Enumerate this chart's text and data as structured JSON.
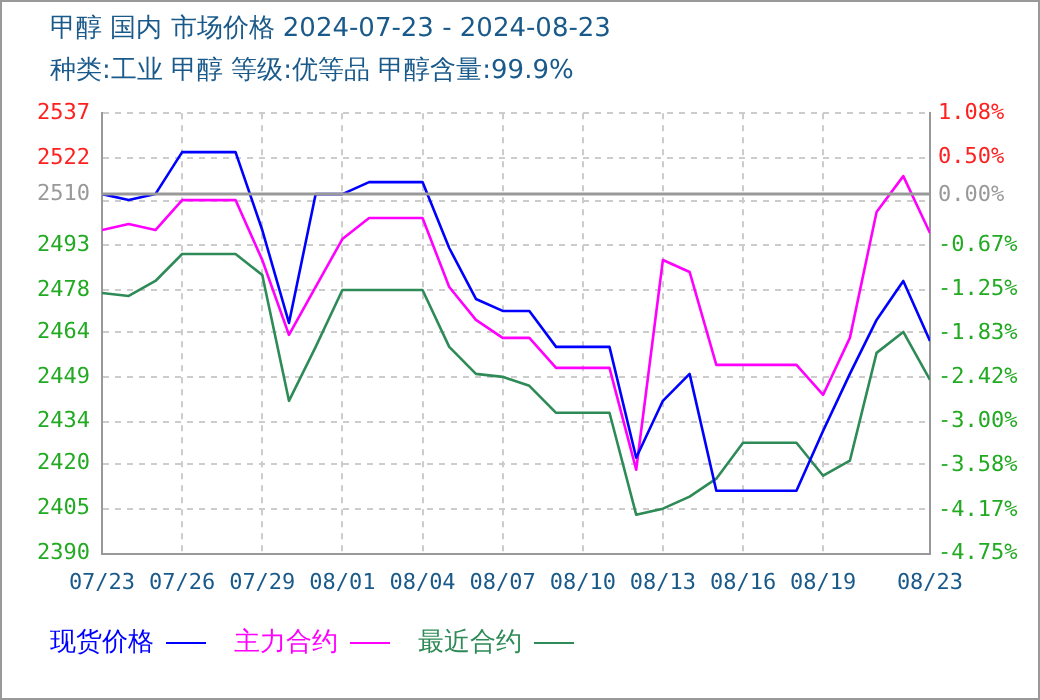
{
  "chart_data": {
    "type": "line",
    "title": "甲醇 国内 市场价格 2024-07-23 - 2024-08-23",
    "subtitle": "种类:工业 甲醇 等级:优等品 甲醇含量:99.9%",
    "x": [
      "2024-07-23",
      "2024-07-24",
      "2024-07-25",
      "2024-07-26",
      "2024-07-27",
      "2024-07-28",
      "2024-07-29",
      "2024-07-30",
      "2024-07-31",
      "2024-08-01",
      "2024-08-02",
      "2024-08-03",
      "2024-08-04",
      "2024-08-05",
      "2024-08-06",
      "2024-08-07",
      "2024-08-08",
      "2024-08-09",
      "2024-08-10",
      "2024-08-11",
      "2024-08-12",
      "2024-08-13",
      "2024-08-14",
      "2024-08-15",
      "2024-08-16",
      "2024-08-17",
      "2024-08-18",
      "2024-08-19",
      "2024-08-20",
      "2024-08-21",
      "2024-08-22",
      "2024-08-23"
    ],
    "series": [
      {
        "name": "现货价格",
        "color": "#0000ff",
        "values": [
          2510,
          2508,
          2510,
          2524,
          2524,
          2524,
          2498,
          2467,
          2510,
          2510,
          2514,
          2514,
          2514,
          2492,
          2475,
          2471,
          2471,
          2459,
          2459,
          2459,
          2422,
          2441,
          2450,
          2411,
          2411,
          2411,
          2411,
          2431,
          2450,
          2468,
          2481,
          2461
        ]
      },
      {
        "name": "主力合约",
        "color": "#ff00ff",
        "values": [
          2498,
          2500,
          2498,
          2508,
          2508,
          2508,
          2488,
          2463,
          2479,
          2495,
          2502,
          2502,
          2502,
          2479,
          2468,
          2462,
          2462,
          2452,
          2452,
          2452,
          2418,
          2488,
          2484,
          2453,
          2453,
          2453,
          2453,
          2443,
          2462,
          2504,
          2516,
          2497
        ]
      },
      {
        "name": "最近合约",
        "color": "#2e8b57",
        "values": [
          2477,
          2476,
          2481,
          2490,
          2490,
          2490,
          2483,
          2441,
          2459,
          2478,
          2478,
          2478,
          2478,
          2459,
          2450,
          2449,
          2446,
          2437,
          2437,
          2437,
          2403,
          2405,
          2409,
          2415,
          2427,
          2427,
          2427,
          2416,
          2421,
          2457,
          2464,
          2448
        ]
      }
    ],
    "xlim": [
      "2024-07-23",
      "2024-08-23"
    ],
    "xticks": [
      {
        "value": "2024-07-23",
        "label": "07/23"
      },
      {
        "value": "2024-07-26",
        "label": "07/26"
      },
      {
        "value": "2024-07-29",
        "label": "07/29"
      },
      {
        "value": "2024-08-01",
        "label": "08/01"
      },
      {
        "value": "2024-08-04",
        "label": "08/04"
      },
      {
        "value": "2024-08-07",
        "label": "08/07"
      },
      {
        "value": "2024-08-10",
        "label": "08/10"
      },
      {
        "value": "2024-08-13",
        "label": "08/13"
      },
      {
        "value": "2024-08-16",
        "label": "08/16"
      },
      {
        "value": "2024-08-19",
        "label": "08/19"
      },
      {
        "value": "2024-08-23",
        "label": "08/23"
      }
    ],
    "ylim": [
      2390,
      2537
    ],
    "yticks": [
      2537,
      2522,
      2510,
      {
        "value": 2507.6,
        "label": null
      },
      2493,
      2478,
      2464,
      2449,
      2434,
      2420,
      2405,
      2390
    ],
    "y2lim": [
      -4.75,
      1.08
    ],
    "y2ticks": [
      {
        "value": 1.08,
        "label": "1.08%"
      },
      {
        "value": 0.5,
        "label": "0.50%"
      },
      {
        "value": 0,
        "label": "0.00%"
      },
      {
        "value": -0.67,
        "label": "-0.67%"
      },
      {
        "value": -1.25,
        "label": "-1.25%"
      },
      {
        "value": -1.83,
        "label": "-1.83%"
      },
      {
        "value": -2.42,
        "label": "-2.42%"
      },
      {
        "value": -3.0,
        "label": "-3.00%"
      },
      {
        "value": -3.58,
        "label": "-3.58%"
      },
      {
        "value": -4.17,
        "label": "-4.17%"
      },
      {
        "value": -4.75,
        "label": "-4.75%"
      }
    ],
    "ref_lines": [
      {
        "axis": "y",
        "value": 2510,
        "color": "#999999"
      }
    ],
    "grid": true,
    "legend": "bottom",
    "marker": "none",
    "line_style": "solid"
  }
}
